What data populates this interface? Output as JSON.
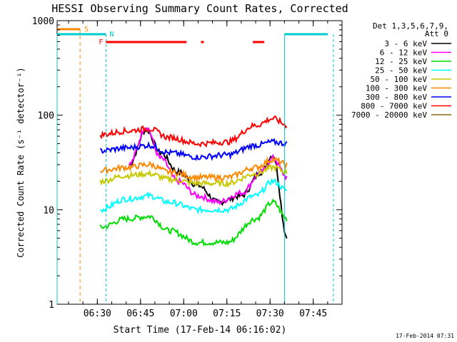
{
  "chart_data": {
    "type": "line",
    "title": "HESSI Observing Summary Count Rates, Corrected",
    "xlabel": "Start Time (17-Feb-14 06:16:02)",
    "ylabel": "Corrected Count Rate (s⁻¹ detector⁻¹)",
    "y_scale": "log",
    "ylim": [
      1,
      1000
    ],
    "xlim": [
      "06:16:02",
      "07:55:00"
    ],
    "x_ticks": [
      "06:30",
      "06:45",
      "07:00",
      "07:15",
      "07:30",
      "07:45"
    ],
    "y_ticks": [
      "1",
      "10",
      "100",
      "1000"
    ],
    "grid": false,
    "legend_position": "top-right",
    "legend_header": [
      "Det 1,3,5,6,7,9,",
      "Att 0"
    ],
    "footer_timestamp": "17-Feb-2014 07:31",
    "series": [
      {
        "name": "3 - 6 keV",
        "color": "#000000",
        "x": [
          "06:41",
          "06:47",
          "06:52",
          "06:58",
          "07:05",
          "07:12",
          "07:20",
          "07:27",
          "07:31",
          "07:36"
        ],
        "y": [
          30,
          70,
          40,
          25,
          18,
          12,
          14,
          25,
          38,
          5
        ]
      },
      {
        "name": "6 - 12 keV",
        "color": "#ff00ff",
        "x": [
          "06:41",
          "06:47",
          "06:52",
          "06:58",
          "07:05",
          "07:12",
          "07:20",
          "07:27",
          "07:31",
          "07:36"
        ],
        "y": [
          30,
          75,
          35,
          20,
          14,
          12,
          15,
          25,
          35,
          22
        ]
      },
      {
        "name": "12 - 25 keV",
        "color": "#00dd00",
        "x": [
          "06:31",
          "06:40",
          "06:48",
          "06:55",
          "07:05",
          "07:15",
          "07:25",
          "07:31",
          "07:36"
        ],
        "y": [
          6.5,
          8,
          8.5,
          6,
          4.5,
          4.5,
          8,
          12,
          8
        ]
      },
      {
        "name": "25 - 50 keV",
        "color": "#00ffff",
        "x": [
          "06:31",
          "06:40",
          "06:48",
          "06:55",
          "07:05",
          "07:15",
          "07:25",
          "07:31",
          "07:36"
        ],
        "y": [
          10,
          13,
          14,
          12,
          10,
          10,
          14,
          20,
          16
        ]
      },
      {
        "name": "50 - 100 keV",
        "color": "#c8c800",
        "x": [
          "06:31",
          "06:40",
          "06:48",
          "06:55",
          "07:05",
          "07:15",
          "07:25",
          "07:31",
          "07:36"
        ],
        "y": [
          20,
          23,
          24,
          21,
          19,
          19,
          24,
          28,
          25
        ]
      },
      {
        "name": "100 - 300 keV",
        "color": "#ff8800",
        "x": [
          "06:31",
          "06:40",
          "06:48",
          "06:55",
          "07:05",
          "07:15",
          "07:25",
          "07:31",
          "07:36"
        ],
        "y": [
          26,
          28,
          30,
          25,
          22,
          22,
          28,
          34,
          30
        ]
      },
      {
        "name": "300 - 800 keV",
        "color": "#0000ff",
        "x": [
          "06:31",
          "06:40",
          "06:48",
          "06:55",
          "07:05",
          "07:15",
          "07:25",
          "07:31",
          "07:36"
        ],
        "y": [
          42,
          45,
          48,
          40,
          36,
          38,
          48,
          52,
          50
        ]
      },
      {
        "name": "800 - 7000 keV",
        "color": "#ff0000",
        "x": [
          "06:31",
          "06:40",
          "06:48",
          "06:55",
          "07:05",
          "07:15",
          "07:25",
          "07:31",
          "07:36"
        ],
        "y": [
          62,
          68,
          72,
          58,
          50,
          52,
          78,
          92,
          78
        ]
      },
      {
        "name": "7000 - 20000 keV",
        "color": "#8b6914",
        "x": [],
        "y": []
      }
    ],
    "annotations": [
      {
        "label": "S",
        "color": "#ff8800"
      },
      {
        "label": "F",
        "color": "#ff0000"
      },
      {
        "label": "N",
        "color": "#00cccc"
      }
    ]
  }
}
